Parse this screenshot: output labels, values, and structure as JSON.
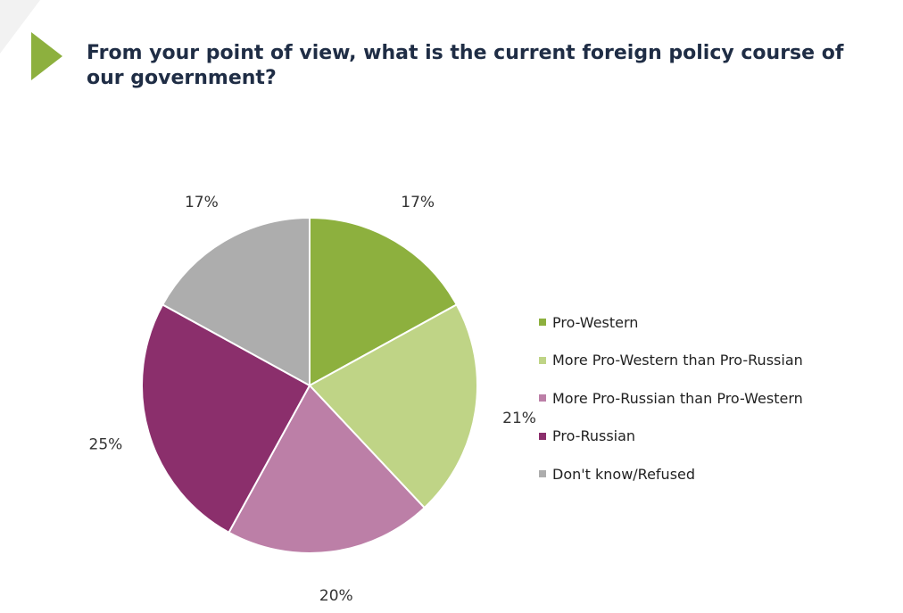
{
  "title": "From your point of view, what is the current foreign policy course of our government?",
  "accent_color": "#8db03e",
  "chart_data": {
    "type": "pie",
    "start_angle_deg": 0,
    "direction": "clockwise",
    "slices": [
      {
        "label": "Pro-Western",
        "value": 17,
        "display": "17%",
        "color": "#8db03e"
      },
      {
        "label": "More Pro-Western than Pro-Russian",
        "value": 21,
        "display": "21%",
        "color": "#bfd486"
      },
      {
        "label": "More Pro-Russian than Pro-Western",
        "value": 20,
        "display": "20%",
        "color": "#bc7fa7"
      },
      {
        "label": "Pro-Russian",
        "value": 25,
        "display": "25%",
        "color": "#8b2f6c"
      },
      {
        "label": "Don't know/Refused",
        "value": 17,
        "display": "17%",
        "color": "#adadad"
      }
    ],
    "legend_position": "right"
  }
}
